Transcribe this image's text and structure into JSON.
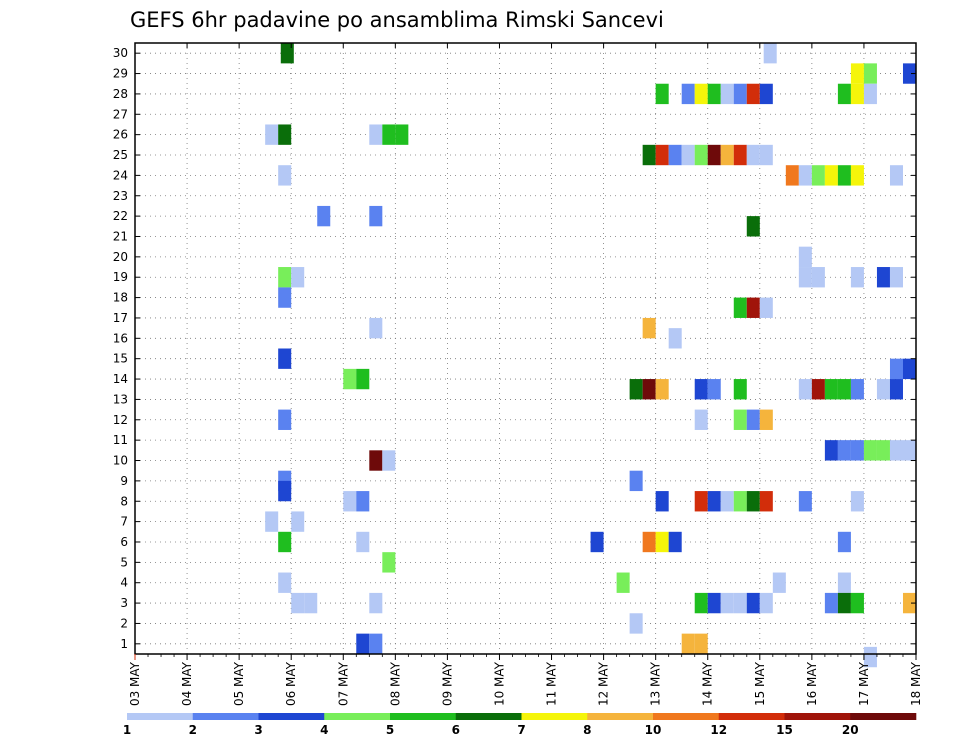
{
  "chart_data": {
    "type": "heatmap",
    "title": "GEFS 6hr padavine po ansamblima Rimski Sancevi",
    "xlabel": "",
    "ylabel": "",
    "x_tick_labels": [
      "03 MAY",
      "04 MAY",
      "05 MAY",
      "06 MAY",
      "07 MAY",
      "08 MAY",
      "09 MAY",
      "10 MAY",
      "11 MAY",
      "12 MAY",
      "13 MAY",
      "14 MAY",
      "15 MAY",
      "16 MAY",
      "17 MAY",
      "18 MAY"
    ],
    "y_tick_labels": [
      "1",
      "2",
      "3",
      "4",
      "5",
      "6",
      "7",
      "8",
      "9",
      "10",
      "11",
      "12",
      "13",
      "14",
      "15",
      "16",
      "17",
      "18",
      "19",
      "20",
      "21",
      "22",
      "23",
      "24",
      "25",
      "26",
      "27",
      "28",
      "29",
      "30"
    ],
    "x_unit": "6-hour step from 03 MAY 00Z",
    "y_unit": "ensemble member",
    "xlim": [
      0,
      60
    ],
    "ylim": [
      0.5,
      30.5
    ],
    "grid": true,
    "legend_position": "bottom",
    "class_breaks": [
      "1",
      "2",
      "3",
      "4",
      "5",
      "6",
      "7",
      "8",
      "10",
      "12",
      "15",
      "20"
    ],
    "class_colors": [
      "#b4c8f5",
      "#5a82f0",
      "#1e46d2",
      "#78ee5a",
      "#1fbe1f",
      "#0a6e0a",
      "#f5f50a",
      "#f5b43c",
      "#f0781e",
      "#d22d0a",
      "#a0140a",
      "#6e0a0a"
    ],
    "cells": [
      [
        11.7,
        30,
        5
      ],
      [
        48.8,
        30,
        0
      ],
      [
        55.5,
        29,
        6
      ],
      [
        56.5,
        29,
        3
      ],
      [
        59.5,
        29,
        2
      ],
      [
        40.5,
        28,
        4
      ],
      [
        42.5,
        28,
        1
      ],
      [
        43.5,
        28,
        6
      ],
      [
        44.5,
        28,
        4
      ],
      [
        45.5,
        28,
        0
      ],
      [
        46.5,
        28,
        1
      ],
      [
        47.5,
        28,
        9
      ],
      [
        48.5,
        28,
        2
      ],
      [
        54.5,
        28,
        4
      ],
      [
        55.5,
        28,
        6
      ],
      [
        56.5,
        28,
        0
      ],
      [
        10.5,
        26,
        0
      ],
      [
        11.5,
        26,
        5
      ],
      [
        18.5,
        26,
        0
      ],
      [
        19.5,
        26,
        4
      ],
      [
        20.5,
        26,
        4
      ],
      [
        39.5,
        25,
        5
      ],
      [
        40.5,
        25,
        9
      ],
      [
        41.5,
        25,
        1
      ],
      [
        42.5,
        25,
        0
      ],
      [
        43.5,
        25,
        3
      ],
      [
        44.5,
        25,
        11
      ],
      [
        45.5,
        25,
        7
      ],
      [
        46.5,
        25,
        9
      ],
      [
        47.5,
        25,
        0
      ],
      [
        48.5,
        25,
        0
      ],
      [
        11.5,
        24,
        0
      ],
      [
        50.5,
        24,
        8
      ],
      [
        51.5,
        24,
        0
      ],
      [
        52.5,
        24,
        3
      ],
      [
        53.5,
        24,
        6
      ],
      [
        54.5,
        24,
        4
      ],
      [
        55.5,
        24,
        6
      ],
      [
        58.5,
        24,
        0
      ],
      [
        14.5,
        22,
        1
      ],
      [
        18.5,
        22,
        1
      ],
      [
        47.5,
        21.5,
        5
      ],
      [
        51.5,
        20,
        0
      ],
      [
        11.5,
        19,
        3
      ],
      [
        12.5,
        19,
        0
      ],
      [
        51.5,
        19,
        0
      ],
      [
        52.5,
        19,
        0
      ],
      [
        55.5,
        19,
        0
      ],
      [
        57.5,
        19,
        2
      ],
      [
        58.5,
        19,
        0
      ],
      [
        11.5,
        18,
        1
      ],
      [
        46.5,
        17.5,
        4
      ],
      [
        47.5,
        17.5,
        10
      ],
      [
        48.5,
        17.5,
        0
      ],
      [
        18.5,
        16.5,
        0
      ],
      [
        39.5,
        16.5,
        7
      ],
      [
        41.5,
        16,
        0
      ],
      [
        11.5,
        15,
        2
      ],
      [
        16.5,
        14,
        3
      ],
      [
        17.5,
        14,
        4
      ],
      [
        58.5,
        14.5,
        1
      ],
      [
        59.5,
        14.5,
        2
      ],
      [
        38.5,
        13.5,
        5
      ],
      [
        39.5,
        13.5,
        11
      ],
      [
        40.5,
        13.5,
        7
      ],
      [
        43.5,
        13.5,
        2
      ],
      [
        44.5,
        13.5,
        1
      ],
      [
        46.5,
        13.5,
        4
      ],
      [
        51.5,
        13.5,
        0
      ],
      [
        52.5,
        13.5,
        10
      ],
      [
        53.5,
        13.5,
        4
      ],
      [
        54.5,
        13.5,
        4
      ],
      [
        55.5,
        13.5,
        1
      ],
      [
        57.5,
        13.5,
        0
      ],
      [
        58.5,
        13.5,
        2
      ],
      [
        11.5,
        12,
        1
      ],
      [
        43.5,
        12,
        0
      ],
      [
        46.5,
        12,
        3
      ],
      [
        47.5,
        12,
        1
      ],
      [
        48.5,
        12,
        7
      ],
      [
        18.5,
        10,
        11
      ],
      [
        19.5,
        10,
        0
      ],
      [
        53.5,
        10.5,
        2
      ],
      [
        54.5,
        10.5,
        1
      ],
      [
        55.5,
        10.5,
        1
      ],
      [
        56.5,
        10.5,
        3
      ],
      [
        57.5,
        10.5,
        3
      ],
      [
        58.5,
        10.5,
        0
      ],
      [
        59.5,
        10.5,
        0
      ],
      [
        11.5,
        9,
        1
      ],
      [
        38.5,
        9,
        1
      ],
      [
        11.5,
        8.5,
        2
      ],
      [
        16.5,
        8,
        0
      ],
      [
        17.5,
        8,
        1
      ],
      [
        40.5,
        8,
        2
      ],
      [
        43.5,
        8,
        9
      ],
      [
        44.5,
        8,
        2
      ],
      [
        45.5,
        8,
        0
      ],
      [
        46.5,
        8,
        3
      ],
      [
        47.5,
        8,
        5
      ],
      [
        48.5,
        8,
        9
      ],
      [
        51.5,
        8,
        1
      ],
      [
        55.5,
        8,
        0
      ],
      [
        10.5,
        7,
        0
      ],
      [
        12.5,
        7,
        0
      ],
      [
        11.5,
        6,
        4
      ],
      [
        17.5,
        6,
        0
      ],
      [
        35.5,
        6,
        2
      ],
      [
        39.5,
        6,
        8
      ],
      [
        40.5,
        6,
        6
      ],
      [
        41.5,
        6,
        2
      ],
      [
        54.5,
        6,
        1
      ],
      [
        19.5,
        5,
        3
      ],
      [
        11.5,
        4,
        0
      ],
      [
        37.5,
        4,
        3
      ],
      [
        49.5,
        4,
        0
      ],
      [
        54.5,
        4,
        0
      ],
      [
        12.5,
        3,
        0
      ],
      [
        13.5,
        3,
        0
      ],
      [
        18.5,
        3,
        0
      ],
      [
        43.5,
        3,
        4
      ],
      [
        44.5,
        3,
        2
      ],
      [
        45.5,
        3,
        0
      ],
      [
        46.5,
        3,
        0
      ],
      [
        47.5,
        3,
        2
      ],
      [
        48.5,
        3,
        0
      ],
      [
        53.5,
        3,
        1
      ],
      [
        54.5,
        3,
        5
      ],
      [
        55.5,
        3,
        4
      ],
      [
        59.5,
        3,
        7
      ],
      [
        38.5,
        2,
        0
      ],
      [
        17.5,
        1,
        2
      ],
      [
        18.5,
        1,
        1
      ],
      [
        42.5,
        1,
        7
      ],
      [
        43.5,
        1,
        7
      ],
      [
        56.5,
        0.35,
        0
      ]
    ]
  }
}
